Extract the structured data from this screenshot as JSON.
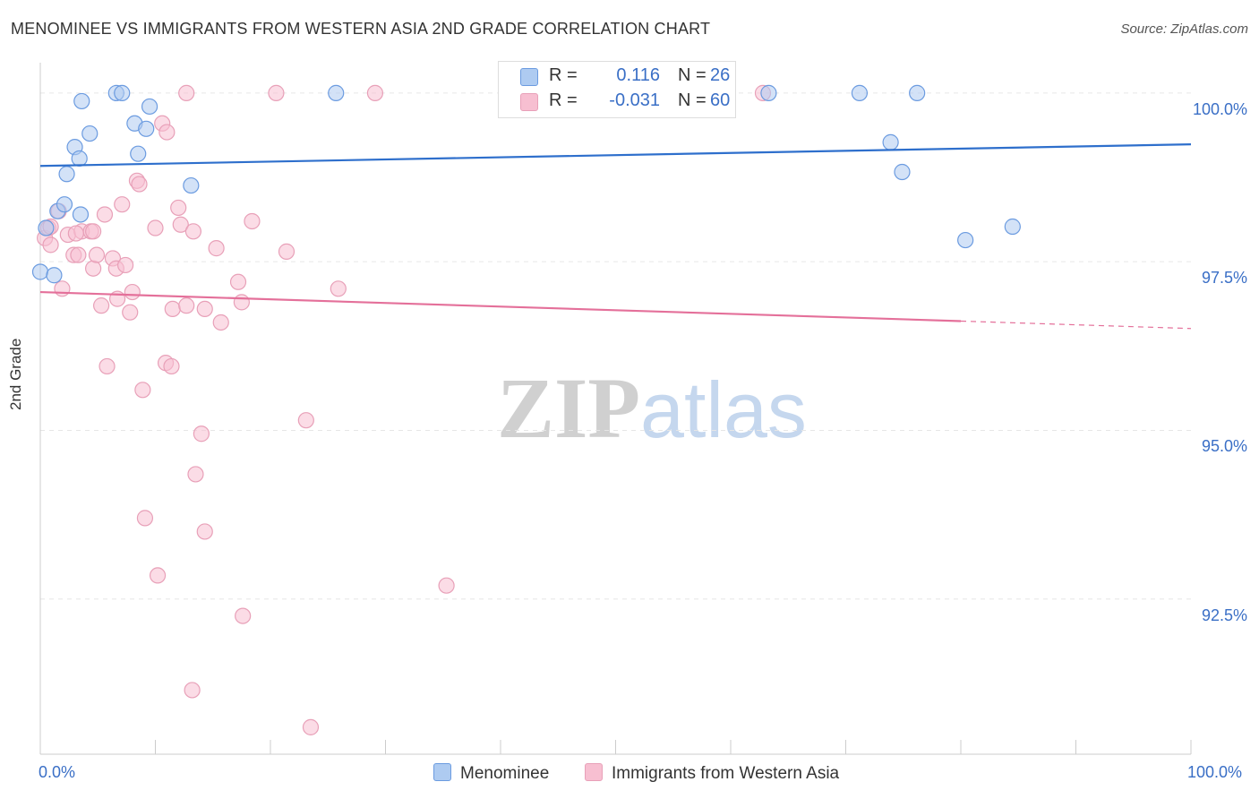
{
  "title": "MENOMINEE VS IMMIGRANTS FROM WESTERN ASIA 2ND GRADE CORRELATION CHART",
  "source": "Source: ZipAtlas.com",
  "watermark": {
    "zip": "ZIP",
    "atlas": "atlas"
  },
  "legend_top": {
    "rows": [
      {
        "r_label": "R =",
        "r_value": "0.116",
        "n_label": "N =",
        "n_value": "26"
      },
      {
        "r_label": "R =",
        "r_value": "-0.031",
        "n_label": "N =",
        "n_value": "60"
      }
    ]
  },
  "legend_bottom": {
    "menominee": "Menominee",
    "immigrants": "Immigrants from Western Asia"
  },
  "colors": {
    "blue_fill": "#aecbf1",
    "blue_stroke": "#6b9be0",
    "blue_line": "#2e6fcc",
    "pink_fill": "#f7bfd1",
    "pink_stroke": "#e8a0b8",
    "pink_line": "#e4709a",
    "axis_text": "#3a6fc6",
    "grid": "#e6e6e6"
  },
  "chart_data": {
    "type": "scatter",
    "title": "MENOMINEE VS IMMIGRANTS FROM WESTERN ASIA 2ND GRADE CORRELATION CHART",
    "xlabel": "",
    "ylabel": "2nd Grade",
    "xlim": [
      0,
      100
    ],
    "ylim": [
      90.2,
      100.45
    ],
    "x_tick_labels": [
      "0.0%",
      "100.0%"
    ],
    "y_ticks": [
      92.5,
      95.0,
      97.5,
      100.0
    ],
    "y_tick_labels": [
      "92.5%",
      "95.0%",
      "97.5%",
      "100.0%"
    ],
    "grid": true,
    "legend_position": "top-center",
    "series": [
      {
        "name": "Menominee",
        "r": 0.116,
        "n": 26,
        "trend": {
          "x0": 0,
          "y0": 98.92,
          "x1": 100,
          "y1": 99.24
        },
        "points": [
          [
            0.0,
            97.35
          ],
          [
            1.2,
            97.3
          ],
          [
            0.5,
            98.0
          ],
          [
            1.5,
            98.25
          ],
          [
            2.1,
            98.35
          ],
          [
            2.3,
            98.8
          ],
          [
            3.5,
            98.2
          ],
          [
            3.0,
            99.2
          ],
          [
            3.4,
            99.03
          ],
          [
            4.3,
            99.4
          ],
          [
            3.6,
            99.88
          ],
          [
            6.6,
            100.0
          ],
          [
            7.1,
            100.0
          ],
          [
            8.2,
            99.55
          ],
          [
            9.2,
            99.47
          ],
          [
            8.5,
            99.1
          ],
          [
            9.5,
            99.8
          ],
          [
            13.1,
            98.63
          ],
          [
            25.7,
            100.0
          ],
          [
            63.3,
            100.0
          ],
          [
            71.2,
            100.0
          ],
          [
            76.2,
            100.0
          ],
          [
            73.9,
            99.27
          ],
          [
            74.9,
            98.83
          ],
          [
            80.4,
            97.82
          ],
          [
            84.5,
            98.02
          ]
        ]
      },
      {
        "name": "Immigrants from Western Asia",
        "r": -0.031,
        "n": 60,
        "trend": {
          "x0": 0,
          "y0": 97.05,
          "x1": 80,
          "y1": 96.62,
          "x_dash_end": 100,
          "y_dash_end": 96.51
        },
        "points": [
          [
            0.4,
            97.85
          ],
          [
            0.7,
            98.0
          ],
          [
            0.9,
            97.75
          ],
          [
            1.6,
            98.25
          ],
          [
            1.9,
            97.1
          ],
          [
            2.4,
            97.9
          ],
          [
            2.9,
            97.6
          ],
          [
            3.3,
            97.6
          ],
          [
            3.6,
            97.95
          ],
          [
            4.4,
            97.95
          ],
          [
            4.6,
            97.95
          ],
          [
            4.6,
            97.4
          ],
          [
            4.9,
            97.6
          ],
          [
            5.3,
            96.85
          ],
          [
            5.6,
            98.2
          ],
          [
            6.3,
            97.55
          ],
          [
            6.6,
            97.4
          ],
          [
            6.7,
            96.95
          ],
          [
            7.1,
            98.35
          ],
          [
            7.4,
            97.45
          ],
          [
            7.8,
            96.75
          ],
          [
            8.0,
            97.05
          ],
          [
            8.4,
            98.7
          ],
          [
            8.6,
            98.65
          ],
          [
            10.0,
            98.0
          ],
          [
            10.6,
            99.55
          ],
          [
            11.0,
            99.42
          ],
          [
            12.0,
            98.3
          ],
          [
            12.2,
            98.05
          ],
          [
            11.5,
            96.8
          ],
          [
            12.7,
            96.85
          ],
          [
            14.3,
            96.8
          ],
          [
            15.7,
            96.6
          ],
          [
            15.3,
            97.7
          ],
          [
            17.2,
            97.2
          ],
          [
            17.5,
            96.9
          ],
          [
            18.4,
            98.1
          ],
          [
            21.4,
            97.65
          ],
          [
            25.9,
            97.1
          ],
          [
            5.8,
            95.95
          ],
          [
            10.9,
            96.0
          ],
          [
            11.4,
            95.95
          ],
          [
            8.9,
            95.6
          ],
          [
            14.0,
            94.95
          ],
          [
            23.1,
            95.15
          ],
          [
            13.5,
            94.35
          ],
          [
            14.3,
            93.5
          ],
          [
            9.1,
            93.7
          ],
          [
            10.2,
            92.85
          ],
          [
            17.6,
            92.25
          ],
          [
            35.3,
            92.7
          ],
          [
            13.2,
            91.15
          ],
          [
            23.5,
            90.6
          ],
          [
            12.7,
            100.0
          ],
          [
            20.5,
            100.0
          ],
          [
            29.1,
            100.0
          ],
          [
            62.8,
            100.0
          ],
          [
            13.3,
            97.95
          ],
          [
            0.9,
            98.02
          ],
          [
            3.1,
            97.92
          ]
        ]
      }
    ]
  }
}
